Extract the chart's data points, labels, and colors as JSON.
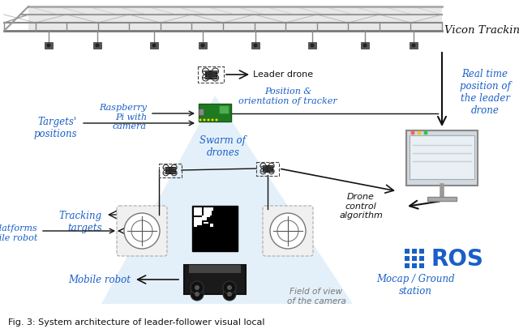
{
  "bg_color": "#ffffff",
  "blue": "#1a5fc8",
  "black": "#111111",
  "gray": "#777777",
  "dark_gray": "#555555",
  "triangle_fill": "#d6e8f7",
  "triangle_alpha": 0.65,
  "vicon_text": "Vicon Tracking System",
  "ros_text": ":::ROS",
  "mocap_text": "Mocap / Ground\nstation",
  "leader_drone_text": "Leader drone",
  "raspberry_text": "Raspberry\nPi with\ncamera",
  "targets_text": "Targets'\npositions",
  "swarm_text": "Swarm of\ndrones",
  "position_text": "Position &\norientation of tracker",
  "tracking_text": "Tracking\ntargets",
  "landing_text": "Landing platforms\non mobile robot",
  "mobile_robot_text": "Mobile robot",
  "fov_text": "Field of view\nof the camera",
  "real_time_text": "Real time\nposition of\nthe leader\ndrone",
  "drone_control_text": "Drone\ncontrol\nalgorithm",
  "caption": "Fig. 3: System architecture of leader-follower visual local"
}
